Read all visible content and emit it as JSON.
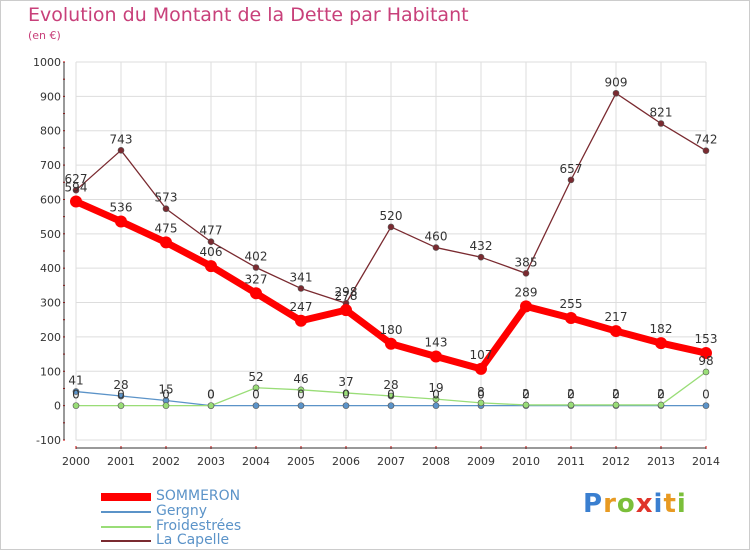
{
  "chart_data": {
    "type": "line",
    "title": "Evolution du Montant de la Dette par Habitant",
    "subtitle": "(en €)",
    "x": [
      "2000",
      "2001",
      "2002",
      "2003",
      "2004",
      "2005",
      "2006",
      "2007",
      "2008",
      "2009",
      "2010",
      "2011",
      "2012",
      "2013",
      "2014"
    ],
    "ylim": [
      -100,
      1000
    ],
    "yticks": [
      -100,
      0,
      100,
      200,
      300,
      400,
      500,
      600,
      700,
      800,
      900,
      1000
    ],
    "grid": true,
    "legend_position": "bottom-left",
    "series": [
      {
        "name": "SOMMERON",
        "color": "#ff0000",
        "values": [
          594,
          536,
          475,
          406,
          327,
          247,
          278,
          180,
          143,
          107,
          289,
          255,
          217,
          182,
          153
        ]
      },
      {
        "name": "Gergny",
        "color": "#5b93c8",
        "values": [
          41,
          28,
          15,
          0,
          0,
          0,
          0,
          0,
          0,
          0,
          0,
          0,
          0,
          0,
          0
        ]
      },
      {
        "name": "Froidestrées",
        "color": "#99dd77",
        "values": [
          0,
          0,
          0,
          0,
          52,
          46,
          37,
          28,
          19,
          8,
          2,
          2,
          2,
          2,
          98
        ]
      },
      {
        "name": "La Capelle",
        "color": "#7a2a30",
        "values": [
          627,
          743,
          573,
          477,
          402,
          341,
          298,
          520,
          460,
          432,
          385,
          657,
          909,
          821,
          742
        ]
      }
    ]
  },
  "logo": {
    "text": "Proxiti"
  },
  "colors": {
    "title": "#c8407a",
    "axis": "#333333",
    "grid": "#dddddd",
    "tick_red": "#cc0000"
  }
}
